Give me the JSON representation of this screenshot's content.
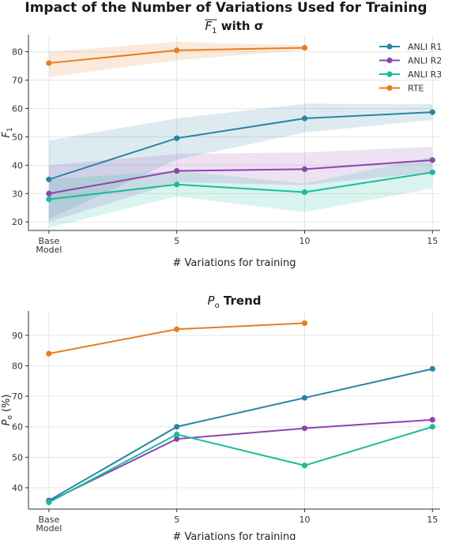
{
  "figure_title": "Impact of the Number of Variations Used for Training",
  "colors": {
    "ANLI R1": "#2a84a6",
    "ANLI R2": "#8e44ad",
    "ANLI R3": "#1abc9c",
    "RTE": "#e67e22"
  },
  "chart_data": [
    {
      "type": "line",
      "title": "F1 with σ",
      "title_parts": {
        "var": "F",
        "sub": "1",
        "rest": " with σ"
      },
      "xlabel": "# Variations for training",
      "ylabel": "F1",
      "ylabel_parts": {
        "var": "F",
        "sub": "1"
      },
      "x": [
        0,
        5,
        10,
        15
      ],
      "xtick_labels": [
        "Base\nModel",
        "5",
        "10",
        "15"
      ],
      "xlim": [
        -0.8,
        15.3
      ],
      "ylim": [
        17,
        86
      ],
      "yticks": [
        20,
        30,
        40,
        50,
        60,
        70,
        80
      ],
      "grid": true,
      "legend": "top-right",
      "legend_entries": [
        "ANLI R1",
        "ANLI R2",
        "ANLI R3",
        "RTE"
      ],
      "series": [
        {
          "name": "ANLI R1",
          "values": [
            35,
            49.5,
            56.5,
            58.7
          ],
          "lower": [
            21,
            42,
            51.5,
            56
          ],
          "upper": [
            48.8,
            56.5,
            61.7,
            61.5
          ]
        },
        {
          "name": "ANLI R2",
          "values": [
            30,
            38,
            38.6,
            41.8
          ],
          "lower": [
            20,
            34,
            33,
            37.5
          ],
          "upper": [
            40,
            44,
            44.5,
            46.5
          ]
        },
        {
          "name": "ANLI R3",
          "values": [
            28,
            33.2,
            30.5,
            37.5
          ],
          "lower": [
            18,
            29,
            23.5,
            31.8
          ],
          "upper": [
            35,
            38,
            33.5,
            43
          ]
        },
        {
          "name": "RTE",
          "values": [
            76,
            80.5,
            81.4,
            null
          ],
          "lower": [
            71,
            77,
            80.5,
            null
          ],
          "upper": [
            80,
            83.5,
            82.2,
            null
          ]
        }
      ]
    },
    {
      "type": "line",
      "title": "Po Trend",
      "title_parts": {
        "var": "P",
        "sub": "o",
        "rest": " Trend"
      },
      "xlabel": "# Variations for training",
      "ylabel": "Po (%)",
      "ylabel_parts": {
        "var": "P",
        "sub": "o",
        "rest": " (%)"
      },
      "x": [
        0,
        5,
        10,
        15
      ],
      "xtick_labels": [
        "Base\nModel",
        "5",
        "10",
        "15"
      ],
      "xlim": [
        -0.8,
        15.3
      ],
      "ylim": [
        33,
        98
      ],
      "yticks": [
        40,
        50,
        60,
        70,
        80,
        90
      ],
      "grid": true,
      "series": [
        {
          "name": "ANLI R1",
          "values": [
            35.8,
            60,
            69.5,
            79
          ]
        },
        {
          "name": "ANLI R2",
          "values": [
            35.5,
            56,
            59.5,
            62.3
          ]
        },
        {
          "name": "ANLI R3",
          "values": [
            35.2,
            57.5,
            47.3,
            60
          ]
        },
        {
          "name": "RTE",
          "values": [
            84,
            92,
            94,
            null
          ]
        }
      ]
    }
  ]
}
